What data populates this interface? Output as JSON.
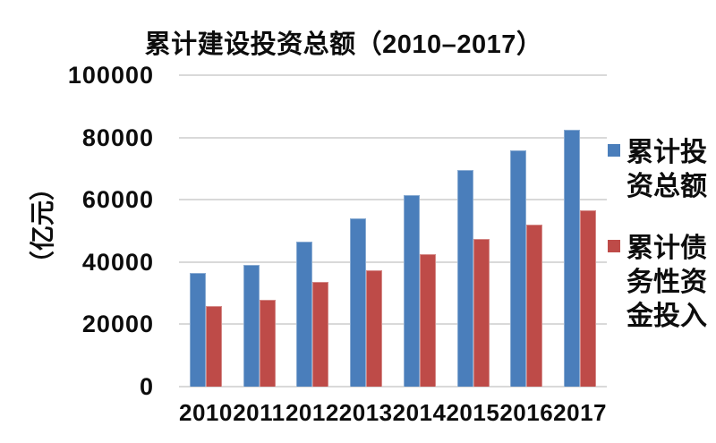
{
  "chart_data": {
    "type": "bar",
    "title": "累计建设投资总额（2010–2017）",
    "ylabel": "（亿元）",
    "xlabel": "",
    "categories": [
      "2010",
      "2011",
      "2012",
      "2013",
      "2014",
      "2015",
      "2016",
      "2017"
    ],
    "series": [
      {
        "name": "累计投资总额",
        "color": "#4A7EBB",
        "values": [
          36500,
          39000,
          46500,
          54000,
          61500,
          69500,
          76000,
          82500
        ]
      },
      {
        "name": "累计债务性资金投入",
        "color": "#BE4B48",
        "values": [
          26000,
          28000,
          33500,
          37500,
          42500,
          47500,
          52000,
          56500
        ]
      }
    ],
    "ylim": [
      0,
      100000
    ],
    "yticks": [
      0,
      20000,
      40000,
      60000,
      80000,
      100000
    ],
    "ytick_labels": [
      "0",
      "20000",
      "40000",
      "60000",
      "80000",
      "100000"
    ],
    "grid": true,
    "legend_position": "right",
    "colors": {
      "grid": "#D9D9D9",
      "text": "#0D0D0D",
      "background": "#FFFFFF"
    }
  }
}
